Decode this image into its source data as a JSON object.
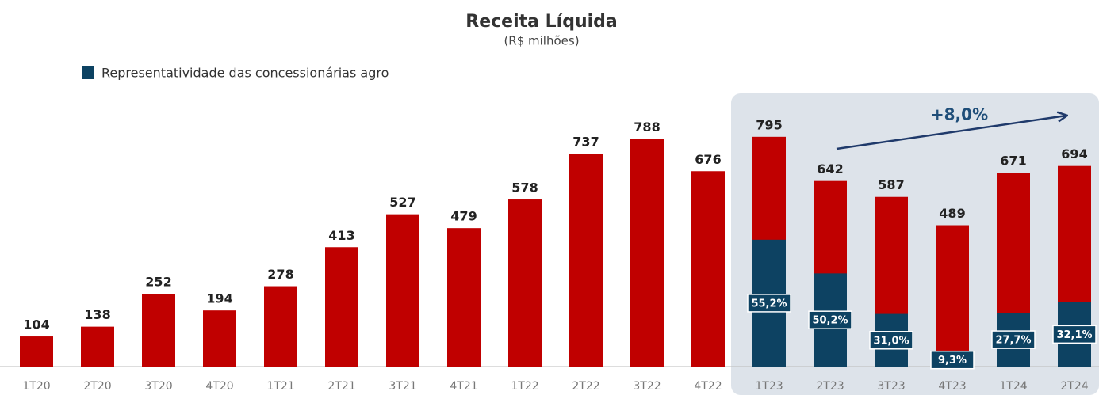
{
  "chart_data": {
    "type": "bar",
    "title": "Receita Líquida",
    "subtitle": "(R$ milhões)",
    "categories": [
      "1T20",
      "2T20",
      "3T20",
      "4T20",
      "1T21",
      "2T21",
      "3T21",
      "4T21",
      "1T22",
      "2T22",
      "3T22",
      "4T22",
      "1T23",
      "2T23",
      "3T23",
      "4T23",
      "1T24",
      "2T24"
    ],
    "values": [
      104,
      138,
      252,
      194,
      278,
      413,
      527,
      479,
      578,
      737,
      788,
      676,
      795,
      642,
      587,
      489,
      671,
      694
    ],
    "color": "#c00000",
    "share": {
      "name": "Representatividade das concessionárias agro",
      "color": "#0d4262",
      "values": [
        null,
        null,
        null,
        null,
        null,
        null,
        null,
        null,
        null,
        null,
        null,
        null,
        55.2,
        50.2,
        31.0,
        9.3,
        27.7,
        32.1
      ],
      "value_labels": [
        null,
        null,
        null,
        null,
        null,
        null,
        null,
        null,
        null,
        null,
        null,
        null,
        "55,2%",
        "50,2%",
        "31,0%",
        "9,3%",
        "27,7%",
        "32,1%"
      ]
    },
    "annotation": "+8,0%"
  }
}
